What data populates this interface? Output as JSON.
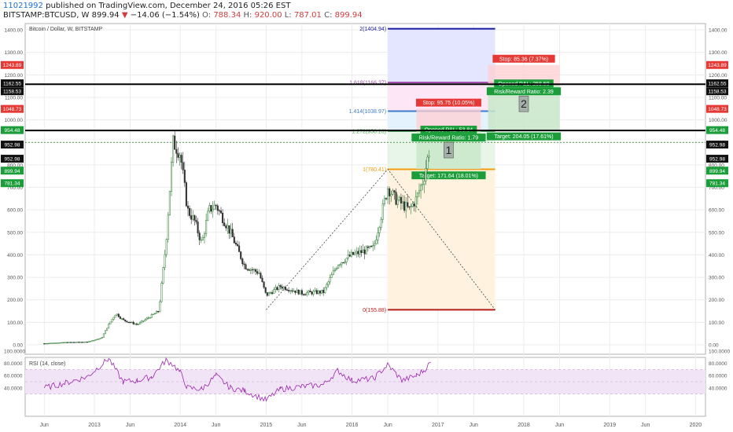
{
  "header": {
    "publish_id": "11021992",
    "publish_text": "published on TradingView.com, December 24, 2016 05:26 EST",
    "symbol": "BITSTAMP:BTCUSD, W",
    "last": "899.94",
    "change_arrow": "▼",
    "change": "−14.06 (−1.54%)",
    "o_label": "O:",
    "o_val": "788.34",
    "h_label": "H:",
    "h_val": "920.00",
    "l_label": "L:",
    "l_val": "787.01",
    "c_label": "C:",
    "c_val": "899.94"
  },
  "colors": {
    "bull": "#2e7d32",
    "bear": "#333333",
    "rsi": "#9c27b0",
    "fib0": "#b71c1c",
    "fib1": "#f39c12",
    "fib1272": "#4caf50",
    "fib1414": "#3d7cc9",
    "fib1618": "#a64fb0",
    "fib2": "#1a1aa0"
  },
  "chart_data": {
    "type": "candlestick",
    "title": "Bitcoin / Dollar, W, BITSTAMP",
    "y_ticks": [
      0,
      100,
      200,
      300,
      400,
      500,
      600,
      700,
      800,
      900,
      1000,
      1100,
      1200,
      1300,
      1400
    ],
    "x_ticks": [
      "Jun",
      "2013",
      "Jun",
      "2014",
      "Jun",
      "2015",
      "Jun",
      "2016",
      "Jun",
      "2017",
      "Jun",
      "2018",
      "Jun",
      "2019",
      "Jun",
      "2020"
    ],
    "price_path": [
      [
        "2012-06",
        6
      ],
      [
        "2012-09",
        11
      ],
      [
        "2012-12",
        13
      ],
      [
        "2013-02",
        30
      ],
      [
        "2013-03",
        90
      ],
      [
        "2013-04",
        140
      ],
      [
        "2013-05",
        110
      ],
      [
        "2013-06",
        100
      ],
      [
        "2013-07",
        90
      ],
      [
        "2013-08",
        110
      ],
      [
        "2013-10",
        150
      ],
      [
        "2013-11",
        450
      ],
      [
        "2013-12",
        900
      ],
      [
        "2014-01",
        850
      ],
      [
        "2014-02",
        600
      ],
      [
        "2014-03",
        550
      ],
      [
        "2014-04",
        450
      ],
      [
        "2014-05",
        600
      ],
      [
        "2014-06",
        620
      ],
      [
        "2014-08",
        500
      ],
      [
        "2014-10",
        350
      ],
      [
        "2014-12",
        320
      ],
      [
        "2015-01",
        220
      ],
      [
        "2015-03",
        260
      ],
      [
        "2015-06",
        230
      ],
      [
        "2015-09",
        235
      ],
      [
        "2015-11",
        360
      ],
      [
        "2016-01",
        400
      ],
      [
        "2016-04",
        430
      ],
      [
        "2016-06",
        700
      ],
      [
        "2016-07",
        650
      ],
      [
        "2016-09",
        600
      ],
      [
        "2016-10",
        650
      ],
      [
        "2016-11",
        740
      ],
      [
        "2016-12",
        900
      ]
    ],
    "current_price": 899.94,
    "horizontal_lines": [
      1158.53,
      952.98
    ],
    "fibonacci": [
      {
        "label": "0(155.88)",
        "value": 155.88
      },
      {
        "label": "1(780.41)",
        "value": 780.41
      },
      {
        "label": "1.272(950.28)",
        "value": 950.28
      },
      {
        "label": "1.414(1038.97)",
        "value": 1038.97
      },
      {
        "label": "1.618(1166.37)",
        "value": 1166.37
      },
      {
        "label": "2(1404.94)",
        "value": 1404.94
      }
    ],
    "positions": [
      {
        "number": "1",
        "stop_label": "Stop: 95.75 (10.05%)",
        "stop_value": 1048.73,
        "pnl_label": "Opened P&L: 53.84",
        "rr_label": "Risk/Reward Ratio: 1.79",
        "target_label": "Target: 171.64 (18.01%)",
        "target_value": 781.34,
        "entry_value": 952.98
      },
      {
        "number": "2",
        "stop_label": "Stop: 85.36 (7.37%)",
        "stop_value": 1243.89,
        "pnl_label": "Opened P&L: 258.59",
        "rr_label": "Risk/Reward Ratio: 2.39",
        "target_label": "Target: 204.05 (17.61%)",
        "target_value": 954.48,
        "entry_value": 1158.53
      }
    ],
    "right_axis_labels": [
      {
        "text": "1243.89",
        "value": 1243.89,
        "color": "#e53935"
      },
      {
        "text": "1162.55",
        "value": 1162.55,
        "color": "#111111"
      },
      {
        "text": "1158.53",
        "value": 1158.53,
        "color": "#111111"
      },
      {
        "text": "1048.73",
        "value": 1048.73,
        "color": "#e53935"
      },
      {
        "text": "954.48",
        "value": 954.48,
        "color": "#1b9e3a"
      },
      {
        "text": "952.98",
        "value": 952.98,
        "color": "#111111"
      },
      {
        "text": "952.98",
        "value": 952.98,
        "color": "#111111"
      },
      {
        "text": "899.94",
        "value": 899.94,
        "color": "#1b9e3a"
      },
      {
        "text": "781.34",
        "value": 781.34,
        "color": "#1b9e3a"
      }
    ],
    "rsi": {
      "label": "RSI (14, close)",
      "ticks": [
        "100.0000",
        "80.0000",
        "60.0000",
        "40.0000"
      ],
      "band": [
        30,
        70
      ],
      "path": [
        [
          "2012-06",
          40
        ],
        [
          "2012-09",
          48
        ],
        [
          "2012-12",
          58
        ],
        [
          "2013-03",
          88
        ],
        [
          "2013-05",
          50
        ],
        [
          "2013-07",
          52
        ],
        [
          "2013-09",
          58
        ],
        [
          "2013-11",
          85
        ],
        [
          "2013-12",
          78
        ],
        [
          "2014-01",
          65
        ],
        [
          "2014-02",
          40
        ],
        [
          "2014-04",
          38
        ],
        [
          "2014-06",
          60
        ],
        [
          "2014-08",
          40
        ],
        [
          "2014-10",
          35
        ],
        [
          "2015-01",
          20
        ],
        [
          "2015-03",
          38
        ],
        [
          "2015-06",
          42
        ],
        [
          "2015-09",
          45
        ],
        [
          "2015-11",
          68
        ],
        [
          "2016-01",
          52
        ],
        [
          "2016-04",
          55
        ],
        [
          "2016-06",
          78
        ],
        [
          "2016-08",
          52
        ],
        [
          "2016-10",
          60
        ],
        [
          "2016-11",
          68
        ],
        [
          "2016-12",
          82
        ]
      ]
    }
  }
}
